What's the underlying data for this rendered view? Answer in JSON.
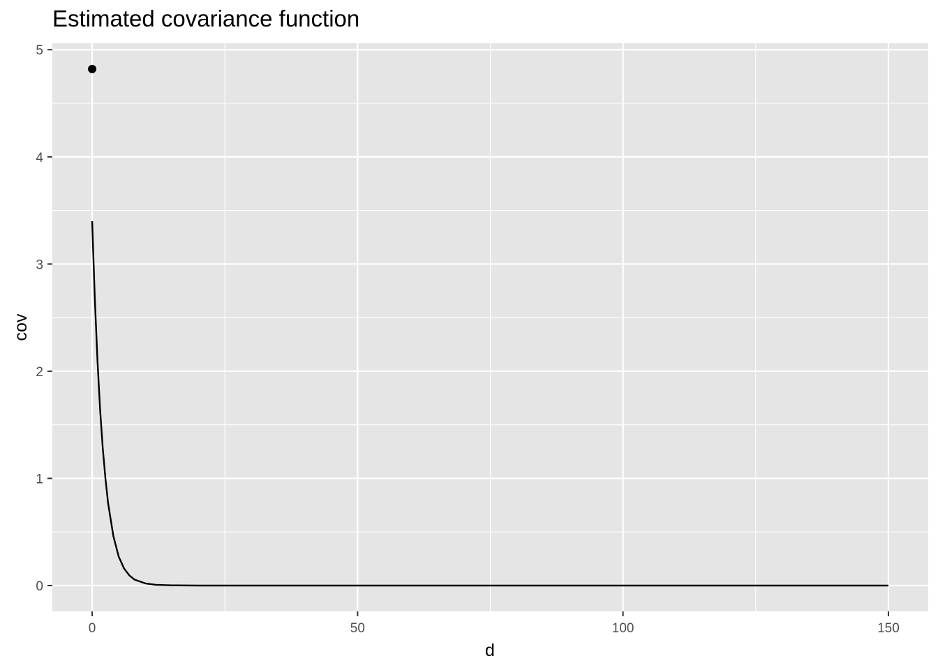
{
  "chart_data": {
    "type": "line",
    "title": "Estimated covariance function",
    "xlabel": "d",
    "ylabel": "cov",
    "xlim": [
      -7.5,
      157.5
    ],
    "ylim": [
      -0.241,
      5.06
    ],
    "x_ticks": [
      0,
      50,
      100,
      150
    ],
    "x_tick_labels": [
      "0",
      "50",
      "100",
      "150"
    ],
    "x_minor_ticks": [
      25,
      75,
      125
    ],
    "y_ticks": [
      0,
      1,
      2,
      3,
      4,
      5
    ],
    "y_tick_labels": [
      "0",
      "1",
      "2",
      "3",
      "4",
      "5"
    ],
    "y_minor_ticks": [
      0.5,
      1.5,
      2.5,
      3.5,
      4.5
    ],
    "grid": true,
    "legend": "none",
    "colors": {
      "panel_background": "#e5e5e5",
      "grid_line": "#ffffff",
      "series_line": "#000000",
      "point": "#000000"
    },
    "series": [
      {
        "type": "line",
        "x": [
          0,
          0.5,
          1,
          1.5,
          2,
          2.5,
          3,
          4,
          5,
          6,
          7,
          8,
          10,
          12,
          15,
          20,
          30,
          50,
          75,
          100,
          125,
          150
        ],
        "y": [
          3.4,
          2.68,
          2.1,
          1.64,
          1.28,
          1.0,
          0.77,
          0.46,
          0.27,
          0.16,
          0.095,
          0.055,
          0.02,
          0.007,
          0.002,
          0,
          0,
          0,
          0,
          0,
          0,
          0
        ]
      },
      {
        "type": "point",
        "x": [
          0
        ],
        "y": [
          4.82
        ]
      }
    ]
  }
}
